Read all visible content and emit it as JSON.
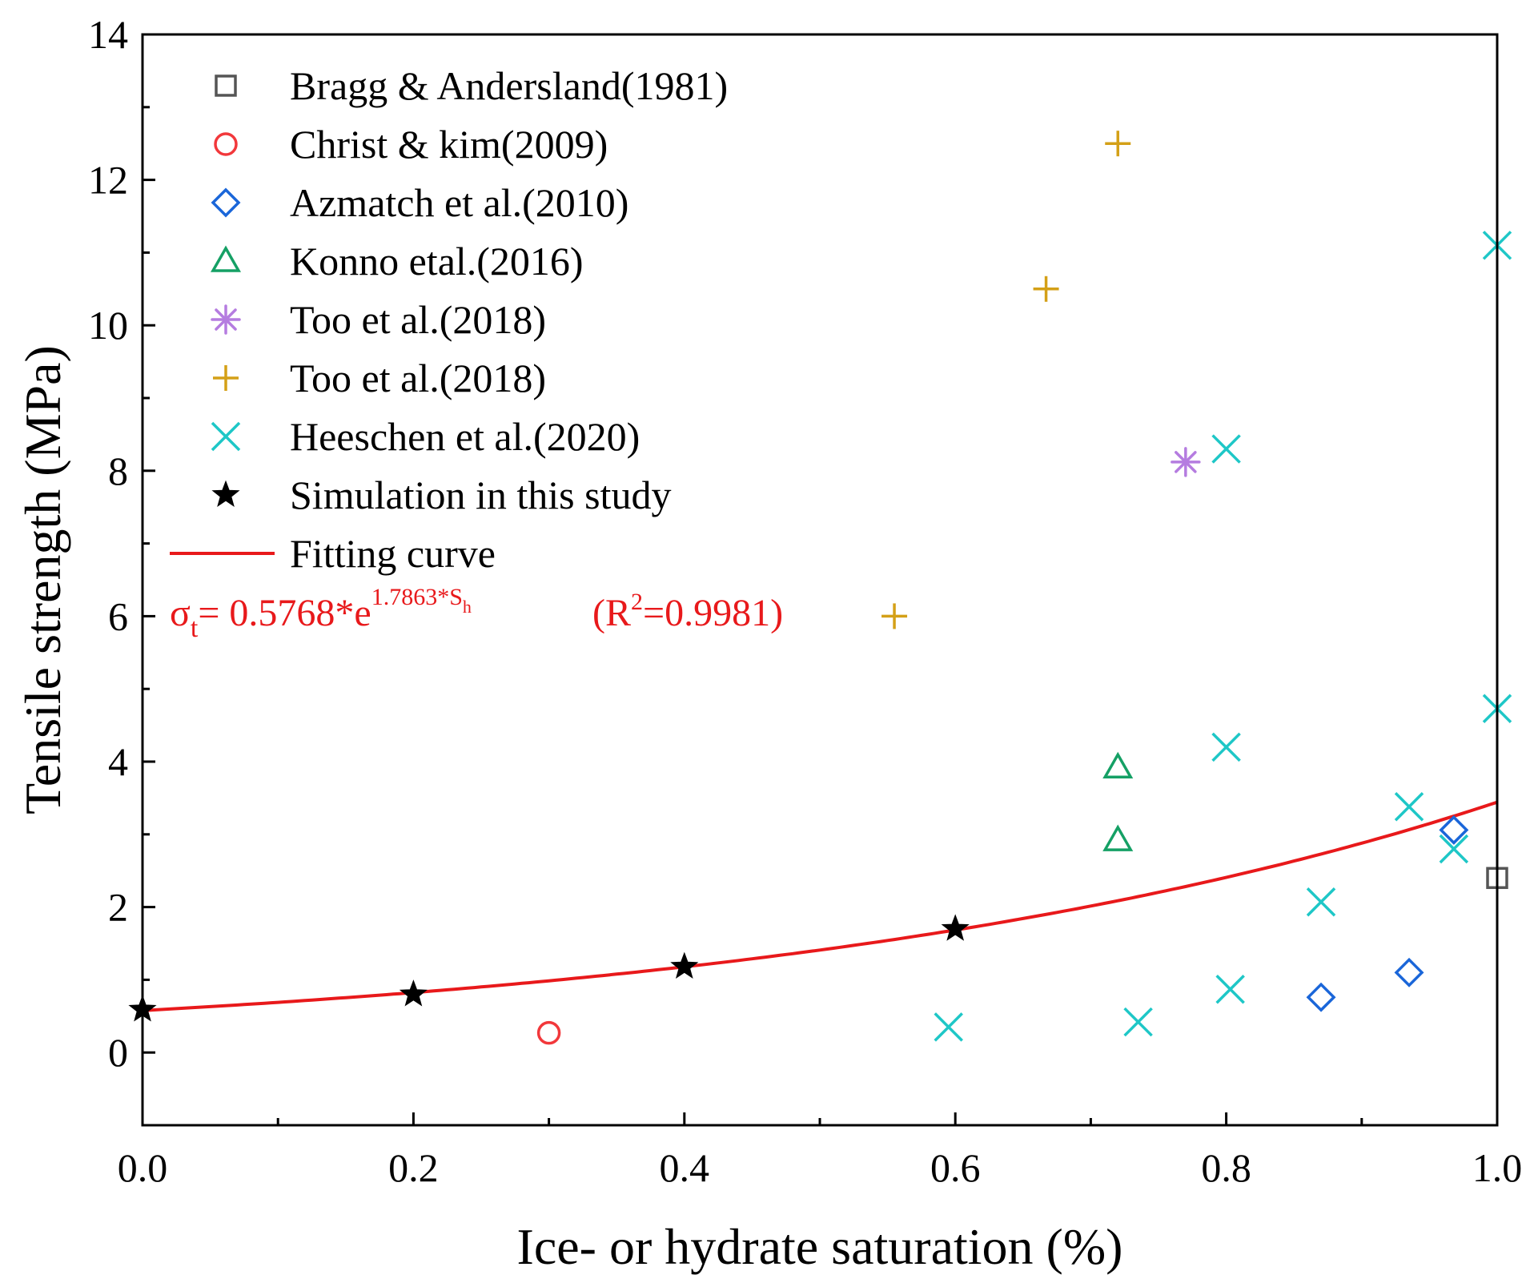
{
  "chart_data": {
    "type": "scatter",
    "title": "",
    "xlabel": "Ice- or hydrate saturation (%)",
    "ylabel": "Tensile strength (MPa)",
    "xlim": [
      0.0,
      1.0
    ],
    "ylim": [
      -1,
      14
    ],
    "x_ticks": [
      "0.0",
      "0.2",
      "0.4",
      "0.6",
      "0.8",
      "1.0"
    ],
    "y_ticks": [
      "0",
      "2",
      "4",
      "6",
      "8",
      "10",
      "12",
      "14"
    ],
    "legend_position": "top-left",
    "series": [
      {
        "name": "Bragg & Andersland(1981)",
        "marker": "square",
        "color": "#555555",
        "points": [
          [
            1.0,
            2.4
          ]
        ]
      },
      {
        "name": "Christ & kim(2009)",
        "marker": "circle",
        "color": "#f2383b",
        "points": [
          [
            0.3,
            0.27
          ]
        ]
      },
      {
        "name": "Azmatch et al.(2010)",
        "marker": "diamond",
        "color": "#1a66d9",
        "points": [
          [
            0.87,
            0.76
          ],
          [
            0.935,
            1.1
          ],
          [
            0.968,
            3.06
          ]
        ]
      },
      {
        "name": "Konno etal.(2016)",
        "marker": "triangle",
        "color": "#15a065",
        "points": [
          [
            0.72,
            3.92
          ],
          [
            0.72,
            2.92
          ]
        ]
      },
      {
        "name": "Too et al.(2018)",
        "marker": "asterisk",
        "color": "#b57ce0",
        "points": [
          [
            0.77,
            8.12
          ]
        ]
      },
      {
        "name": "Too et al.(2018)",
        "marker": "plus",
        "color": "#d4a017",
        "points": [
          [
            0.555,
            6.0
          ],
          [
            0.667,
            10.5
          ],
          [
            0.72,
            12.5
          ]
        ]
      },
      {
        "name": "Heeschen et al.(2020)",
        "marker": "x",
        "color": "#1ec7c7",
        "points": [
          [
            0.595,
            0.35
          ],
          [
            0.735,
            0.42
          ],
          [
            0.8,
            8.3
          ],
          [
            0.8,
            4.2
          ],
          [
            0.803,
            0.87
          ],
          [
            0.87,
            2.07
          ],
          [
            0.935,
            3.38
          ],
          [
            0.968,
            2.8
          ],
          [
            1.0,
            11.1
          ],
          [
            1.0,
            4.73
          ]
        ]
      },
      {
        "name": "Simulation in this study",
        "marker": "star",
        "color": "#000000",
        "points": [
          [
            0.0,
            0.59
          ],
          [
            0.2,
            0.8
          ],
          [
            0.4,
            1.18
          ],
          [
            0.6,
            1.7
          ]
        ]
      },
      {
        "name": "Fitting curve",
        "marker": "line",
        "color": "#e8191b",
        "equation": {
          "a": 0.5768,
          "b": 1.7863
        }
      }
    ],
    "annotation": {
      "sigma": "σ",
      "sigma_sub": "t",
      "eq_main": "= 0.5768*e",
      "eq_sup": "1.7863*S",
      "eq_sup_sub": "h",
      "r_open": "(R",
      "r_sup": "2",
      "r_close": "=0.9981)",
      "color": "#e8191b"
    }
  }
}
